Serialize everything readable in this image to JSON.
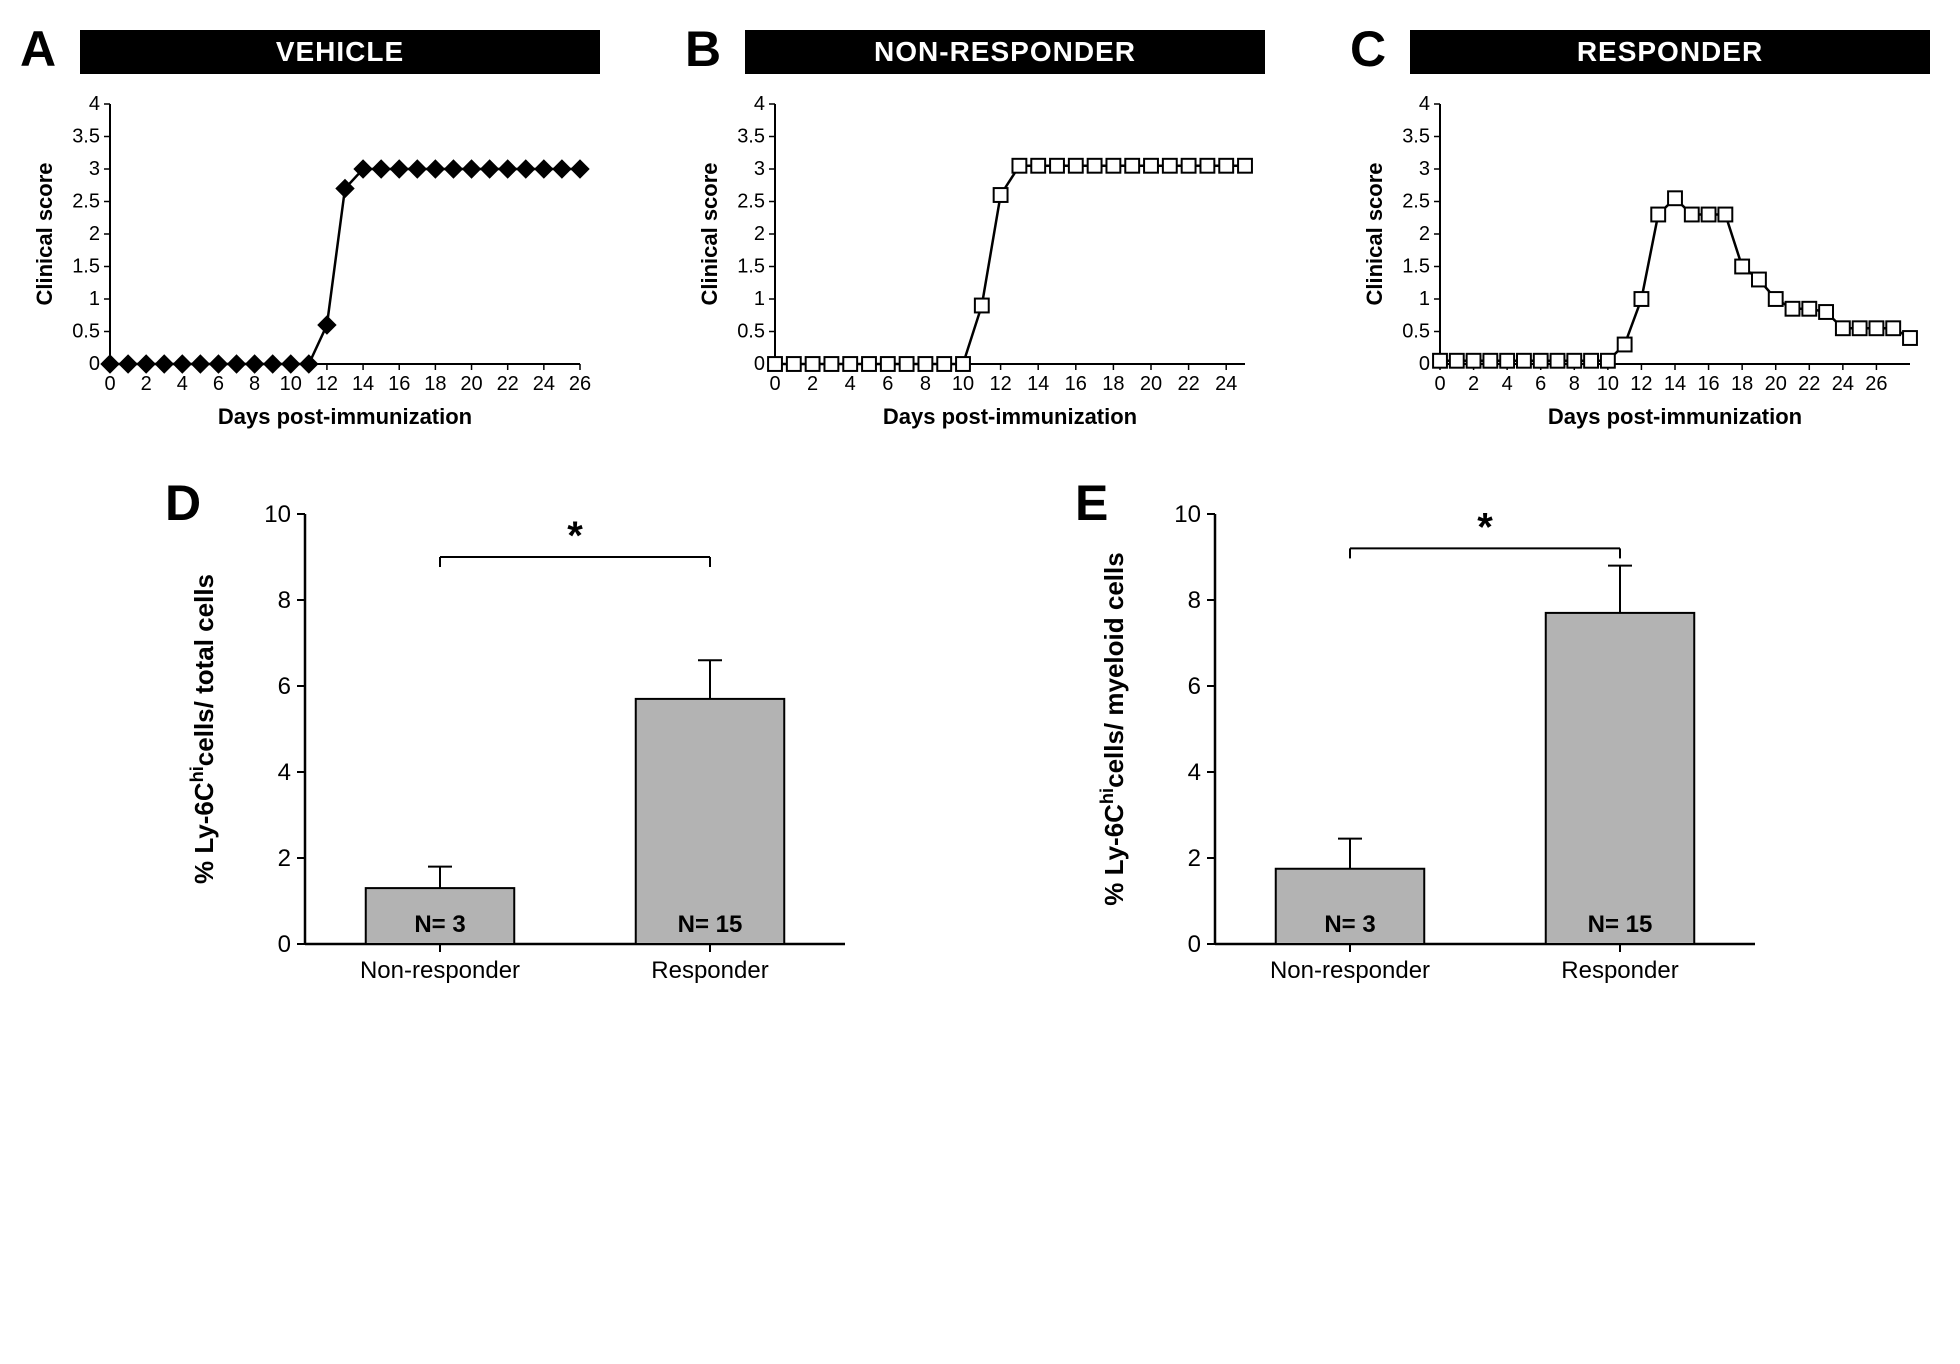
{
  "panelA": {
    "letter": "A",
    "title": "VEHICLE",
    "type": "line",
    "xlabel": "Days post-immunization",
    "ylabel": "Clinical score",
    "xticks": [
      0,
      2,
      4,
      6,
      8,
      10,
      12,
      14,
      16,
      18,
      20,
      22,
      24,
      26
    ],
    "yticks": [
      0,
      0.5,
      1,
      1.5,
      2,
      2.5,
      3,
      3.5,
      4
    ],
    "ylim": [
      0,
      4
    ],
    "xlim": [
      0,
      26
    ],
    "x": [
      0,
      1,
      2,
      3,
      4,
      5,
      6,
      7,
      8,
      9,
      10,
      11,
      12,
      13,
      14,
      15,
      16,
      17,
      18,
      19,
      20,
      21,
      22,
      23,
      24,
      25,
      26
    ],
    "y": [
      0,
      0,
      0,
      0,
      0,
      0,
      0,
      0,
      0,
      0,
      0,
      0,
      0.6,
      2.7,
      3,
      3,
      3,
      3,
      3,
      3,
      3,
      3,
      3,
      3,
      3,
      3,
      3
    ],
    "marker": "diamond-filled",
    "marker_color": "#000000",
    "line_color": "#000000",
    "line_width": 2.5,
    "marker_size": 9,
    "background_color": "#ffffff",
    "font_size_axis": 22,
    "font_size_tick": 20
  },
  "panelB": {
    "letter": "B",
    "title": "NON-RESPONDER",
    "type": "line",
    "xlabel": "Days post-immunization",
    "ylabel": "Clinical score",
    "xticks": [
      0,
      2,
      4,
      6,
      8,
      10,
      12,
      14,
      16,
      18,
      20,
      22,
      24
    ],
    "yticks": [
      0,
      0.5,
      1,
      1.5,
      2,
      2.5,
      3,
      3.5,
      4
    ],
    "ylim": [
      0,
      4
    ],
    "xlim": [
      0,
      25
    ],
    "x": [
      0,
      1,
      2,
      3,
      4,
      5,
      6,
      7,
      8,
      9,
      10,
      11,
      12,
      13,
      14,
      15,
      16,
      17,
      18,
      19,
      20,
      21,
      22,
      23,
      24,
      25
    ],
    "y": [
      0,
      0,
      0,
      0,
      0,
      0,
      0,
      0,
      0,
      0,
      0,
      0.9,
      2.6,
      3.05,
      3.05,
      3.05,
      3.05,
      3.05,
      3.05,
      3.05,
      3.05,
      3.05,
      3.05,
      3.05,
      3.05,
      3.05
    ],
    "marker": "square-open",
    "marker_color": "#000000",
    "marker_fill": "#ffffff",
    "line_color": "#000000",
    "line_width": 2.5,
    "marker_size": 9,
    "background_color": "#ffffff",
    "font_size_axis": 22,
    "font_size_tick": 20
  },
  "panelC": {
    "letter": "C",
    "title": "RESPONDER",
    "type": "line",
    "xlabel": "Days post-immunization",
    "ylabel": "Clinical score",
    "xticks": [
      0,
      2,
      4,
      6,
      8,
      10,
      12,
      14,
      16,
      18,
      20,
      22,
      24,
      26
    ],
    "yticks": [
      0,
      0.5,
      1,
      1.5,
      2,
      2.5,
      3,
      3.5,
      4
    ],
    "ylim": [
      0,
      4
    ],
    "xlim": [
      0,
      28
    ],
    "x": [
      0,
      1,
      2,
      3,
      4,
      5,
      6,
      7,
      8,
      9,
      10,
      11,
      12,
      13,
      14,
      15,
      16,
      17,
      18,
      19,
      20,
      21,
      22,
      23,
      24,
      25,
      26,
      27,
      28
    ],
    "y": [
      0.05,
      0.05,
      0.05,
      0.05,
      0.05,
      0.05,
      0.05,
      0.05,
      0.05,
      0.05,
      0.05,
      0.3,
      1.0,
      2.3,
      2.55,
      2.3,
      2.3,
      2.3,
      1.5,
      1.3,
      1.0,
      0.85,
      0.85,
      0.8,
      0.55,
      0.55,
      0.55,
      0.55,
      0.4
    ],
    "marker": "square-open",
    "marker_color": "#000000",
    "marker_fill": "#ffffff",
    "line_color": "#000000",
    "line_width": 2.5,
    "marker_size": 9,
    "background_color": "#ffffff",
    "font_size_axis": 22,
    "font_size_tick": 20
  },
  "panelD": {
    "letter": "D",
    "type": "bar",
    "ylabel_pre": "% Ly-6C",
    "ylabel_sup": "hi",
    "ylabel_post": "cells/ total cells",
    "yticks": [
      0,
      2,
      4,
      6,
      8,
      10
    ],
    "ylim": [
      0,
      10
    ],
    "categories": [
      "Non-responder",
      "Responder"
    ],
    "values": [
      1.3,
      5.7
    ],
    "errors": [
      0.5,
      0.9
    ],
    "n_labels": [
      "N= 3",
      "N= 15"
    ],
    "bar_color": "#b3b3b3",
    "bar_border": "#000000",
    "bar_width": 0.55,
    "background_color": "#ffffff",
    "sig_label": "*",
    "sig_y": 9.0,
    "font_size_axis": 26,
    "font_size_tick": 24,
    "font_size_n": 24,
    "font_size_sig": 40
  },
  "panelE": {
    "letter": "E",
    "type": "bar",
    "ylabel_pre": "% Ly-6C",
    "ylabel_sup": "hi",
    "ylabel_post": "cells/ myeloid cells",
    "yticks": [
      0,
      2,
      4,
      6,
      8,
      10
    ],
    "ylim": [
      0,
      10
    ],
    "categories": [
      "Non-responder",
      "Responder"
    ],
    "values": [
      1.75,
      7.7
    ],
    "errors": [
      0.7,
      1.1
    ],
    "n_labels": [
      "N= 3",
      "N= 15"
    ],
    "bar_color": "#b3b3b3",
    "bar_border": "#000000",
    "bar_width": 0.55,
    "background_color": "#ffffff",
    "sig_label": "*",
    "sig_y": 9.2,
    "font_size_axis": 26,
    "font_size_tick": 24,
    "font_size_n": 24,
    "font_size_sig": 40
  }
}
